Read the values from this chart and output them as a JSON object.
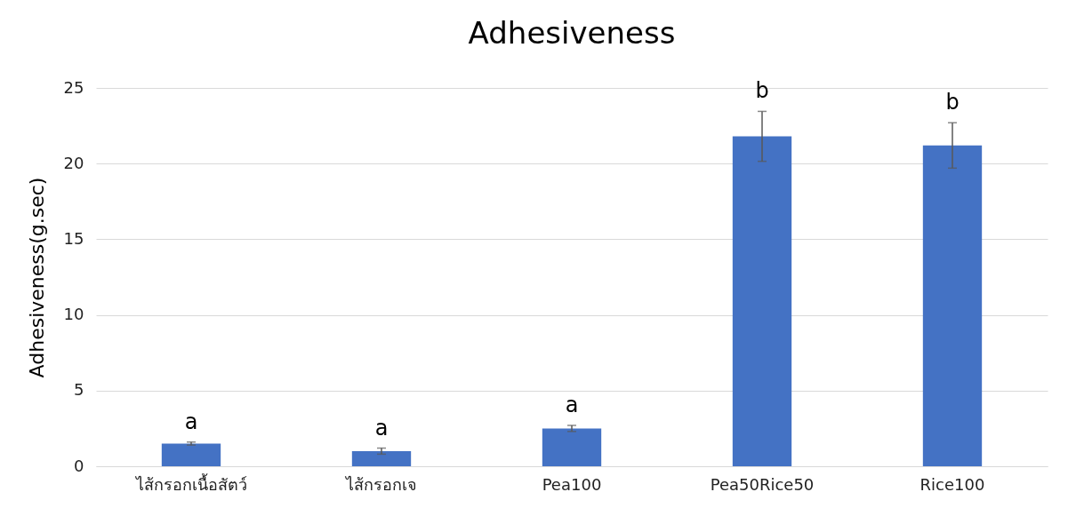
{
  "chart_data": {
    "type": "bar",
    "title": "Adhesiveness",
    "ylabel": "Adhesiveness(g.sec)",
    "categories": [
      "ไส้กรอกเนื้อสัตว์",
      "ไส้กรอกเจ",
      "Pea100",
      "Pea50Rice50",
      "Rice100"
    ],
    "series": [
      {
        "color": "#4472c4",
        "values": [
          1.5,
          1.0,
          2.5,
          21.8,
          21.2
        ],
        "errors": [
          0.1,
          0.2,
          0.2,
          1.65,
          1.5
        ]
      }
    ],
    "ylim": [
      0,
      25
    ],
    "yticks": [
      0,
      5,
      10,
      15,
      20,
      25
    ],
    "grid": "y",
    "annotations": [
      {
        "text": "a",
        "x": "ไส้กรอกเนื้อสัตว์",
        "y": 1.6
      },
      {
        "text": "a",
        "x": "ไส้กรอกเจ",
        "y": 1.2
      },
      {
        "text": "a",
        "x": "Pea100",
        "y": 2.7
      },
      {
        "text": "b",
        "x": "Pea50Rice50",
        "y": 23.45
      },
      {
        "text": "b",
        "x": "Rice100",
        "y": 22.7
      }
    ]
  }
}
